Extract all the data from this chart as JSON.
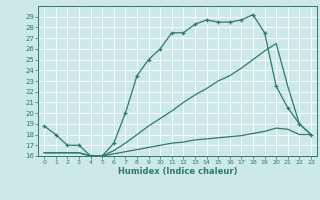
{
  "xlabel": "Humidex (Indice chaleur)",
  "ylabel": "",
  "bg_color": "#cce8e8",
  "grid_color": "#ffffff",
  "line_color": "#2d7a6e",
  "xlim": [
    -0.5,
    23.5
  ],
  "ylim": [
    16,
    30
  ],
  "xticks": [
    0,
    1,
    2,
    3,
    4,
    5,
    6,
    7,
    8,
    9,
    10,
    11,
    12,
    13,
    14,
    15,
    16,
    17,
    18,
    19,
    20,
    21,
    22,
    23
  ],
  "yticks": [
    16,
    17,
    18,
    19,
    20,
    21,
    22,
    23,
    24,
    25,
    26,
    27,
    28,
    29
  ],
  "line1_x": [
    0,
    1,
    2,
    3,
    4,
    5,
    6,
    7,
    8,
    9,
    10,
    11,
    12,
    13,
    14,
    15,
    16,
    17,
    18,
    19,
    20,
    21,
    22,
    23
  ],
  "line1_y": [
    18.8,
    18.0,
    17.0,
    17.0,
    16.0,
    16.0,
    17.2,
    20.0,
    23.5,
    25.0,
    26.0,
    27.5,
    27.5,
    28.3,
    28.7,
    28.5,
    28.5,
    28.7,
    29.2,
    27.5,
    22.5,
    20.5,
    19.0,
    18.0
  ],
  "line2_x": [
    0,
    1,
    2,
    3,
    4,
    5,
    6,
    7,
    8,
    9,
    10,
    11,
    12,
    13,
    14,
    15,
    16,
    17,
    18,
    19,
    20,
    21,
    22,
    23
  ],
  "line2_y": [
    16.3,
    16.3,
    16.3,
    16.3,
    16.0,
    16.0,
    16.2,
    16.4,
    16.6,
    16.8,
    17.0,
    17.2,
    17.3,
    17.5,
    17.6,
    17.7,
    17.8,
    17.9,
    18.1,
    18.3,
    18.6,
    18.5,
    18.0,
    18.0
  ],
  "line3_x": [
    0,
    1,
    2,
    3,
    4,
    5,
    6,
    7,
    8,
    9,
    10,
    11,
    12,
    13,
    14,
    15,
    16,
    17,
    18,
    19,
    20,
    21,
    22,
    23
  ],
  "line3_y": [
    16.3,
    16.3,
    16.3,
    16.3,
    16.0,
    16.0,
    16.5,
    17.2,
    18.0,
    18.8,
    19.5,
    20.2,
    21.0,
    21.7,
    22.3,
    23.0,
    23.5,
    24.2,
    25.0,
    25.8,
    26.5,
    22.5,
    19.0,
    18.0
  ]
}
